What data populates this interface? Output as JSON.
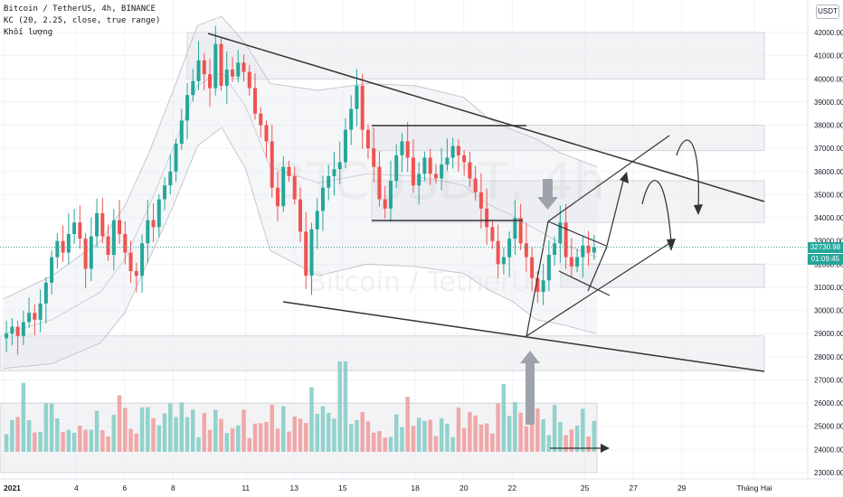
{
  "legend": {
    "symbol": "Bitcoin / TetherUS, 4h, BINANCE",
    "indicator": "KC (20, 2.25, close, true range)",
    "volume": "Khối lượng"
  },
  "watermark": {
    "big": "BTCUSDT, 4h",
    "small": "Bitcoin / TetherUS"
  },
  "currency_button": "USDT",
  "price_tag": {
    "value": "32730.98",
    "countdown": "01:09:45",
    "color": "#26a69a"
  },
  "colors": {
    "up": "#26a69a",
    "down": "#ef5350",
    "up_vol": "#80cbc4",
    "down_vol": "#ef9a9a",
    "zone": "#e9e9ed",
    "line": "#333333",
    "arrow": "#9ea3ab"
  },
  "chart_data": {
    "type": "candlestick",
    "title": "Bitcoin / TetherUS, 4h, BINANCE",
    "y_range": [
      22900,
      43000
    ],
    "y_ticks": [
      23000,
      24000,
      25000,
      26000,
      27000,
      28000,
      29000,
      30000,
      31000,
      32000,
      33000,
      34000,
      35000,
      36000,
      37000,
      38000,
      39000,
      40000,
      41000,
      42000
    ],
    "y_tick_labels": [
      "23000.00",
      "24000.00",
      "25000.00",
      "26000.00",
      "27000.00",
      "28000.00",
      "29000.00",
      "30000.00",
      "31000.00",
      "32000.00",
      "33000.00",
      "34000.00",
      "35000.00",
      "36000.00",
      "37000.00",
      "38000.00",
      "39000.00",
      "40000.00",
      "41000.00",
      "42000.00"
    ],
    "x_ticks": [
      {
        "day": 1,
        "label": "2021"
      },
      {
        "day": 4,
        "label": "4"
      },
      {
        "day": 6,
        "label": "6"
      },
      {
        "day": 8,
        "label": "8"
      },
      {
        "day": 11,
        "label": "11"
      },
      {
        "day": 13,
        "label": "13"
      },
      {
        "day": 15,
        "label": "15"
      },
      {
        "day": 18,
        "label": "18"
      },
      {
        "day": 20,
        "label": "20"
      },
      {
        "day": 22,
        "label": "22"
      },
      {
        "day": 25,
        "label": "25"
      },
      {
        "day": 27,
        "label": "27"
      },
      {
        "day": 29,
        "label": "29"
      },
      {
        "day": 32,
        "label": "Tháng Hai"
      }
    ],
    "x_range_days": [
      0.85,
      34.2
    ],
    "candles_4h_closes": [
      29000,
      29300,
      28900,
      29500,
      29900,
      29600,
      30300,
      31200,
      32300,
      33000,
      32500,
      33300,
      33800,
      33100,
      31800,
      33200,
      34200,
      33200,
      32400,
      33900,
      33300,
      32500,
      31700,
      31500,
      32900,
      33900,
      33600,
      34800,
      35400,
      36000,
      37200,
      38200,
      39300,
      39900,
      40800,
      40200,
      39600,
      41500,
      39700,
      40400,
      40100,
      40700,
      40300,
      39600,
      38500,
      38000,
      37300,
      35300,
      34500,
      36200,
      35800,
      34800,
      33400,
      31500,
      33500,
      34300,
      35300,
      35800,
      36100,
      36400,
      37800,
      38700,
      39700,
      37800,
      37000,
      36200,
      34800,
      34400,
      35600,
      36700,
      37300,
      36600,
      35400,
      35900,
      36600,
      35900,
      35700,
      36300,
      36600,
      37100,
      36700,
      36400,
      35700,
      35100,
      34400,
      33600,
      33000,
      32000,
      32300,
      33100,
      34000,
      32900,
      32300,
      31400,
      30800,
      31300,
      32400,
      32900,
      33800,
      32300,
      31900,
      32300,
      32800,
      32500,
      32730
    ],
    "candles_start_day": 1.0,
    "candle_period_days": 0.1667,
    "keltner_upper": [
      30500,
      31500,
      33000,
      34500,
      36800,
      39500,
      42300,
      42700,
      41500,
      39800,
      39500,
      39800,
      39700,
      39200,
      38300,
      37800,
      37400,
      36800,
      36200
    ],
    "keltner_middle": [
      29000,
      29600,
      30800,
      32200,
      34500,
      37000,
      39700,
      40300,
      38800,
      36200,
      35500,
      35900,
      35800,
      35400,
      34600,
      34100,
      33500,
      32900,
      32300
    ],
    "keltner_lower": [
      27500,
      27700,
      28600,
      29900,
      32200,
      34500,
      37100,
      37900,
      36100,
      32600,
      31500,
      32000,
      31900,
      31600,
      30900,
      30400,
      29600,
      29400,
      29000
    ],
    "keltner_days": [
      1,
      3,
      5,
      6,
      7,
      8,
      9,
      10,
      11,
      12,
      14,
      16,
      18,
      20,
      21,
      22,
      23,
      24,
      25.5
    ],
    "volume_note": "Khối lượng",
    "zones": [
      {
        "from": 40000,
        "to": 42000
      },
      {
        "from": 36900,
        "to": 38000
      },
      {
        "from": 33800,
        "to": 35600
      },
      {
        "from": 31000,
        "to": 32000
      },
      {
        "from": 27400,
        "to": 28900
      },
      {
        "from": 23000,
        "to": 26000
      }
    ],
    "last_price": 32730.98
  }
}
